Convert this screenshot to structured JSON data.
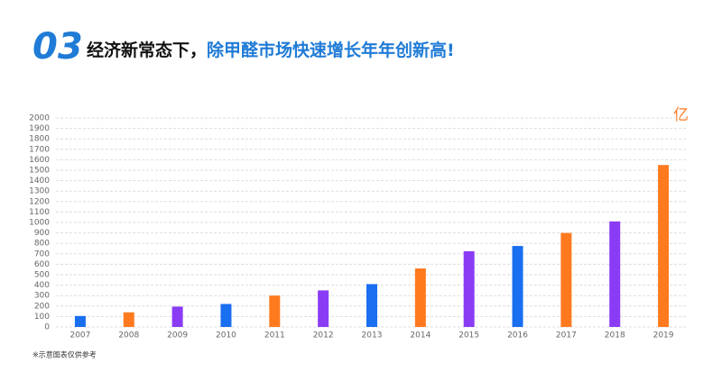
{
  "chart_data": {
    "type": "bar",
    "title_number": "03",
    "title": "经济新常态下，",
    "title_highlight": "除甲醛市场快速增长年年创新高!",
    "y_unit": "亿",
    "note": "※示意图表仅供参考",
    "categories": [
      "2007",
      "2008",
      "2009",
      "2010",
      "2011",
      "2012",
      "2013",
      "2014",
      "2015",
      "2016",
      "2017",
      "2018",
      "2019"
    ],
    "values": [
      105,
      140,
      195,
      220,
      300,
      350,
      410,
      560,
      725,
      775,
      900,
      1010,
      1550
    ],
    "colors": [
      "#1a6ef0",
      "#ff7a1f",
      "#8a3cf5",
      "#1a6ef0",
      "#ff7a1f",
      "#8a3cf5",
      "#1a6ef0",
      "#ff7a1f",
      "#8a3cf5",
      "#1a6ef0",
      "#ff7a1f",
      "#8a3cf5",
      "#ff7a1f"
    ],
    "ylim": [
      0,
      2000
    ],
    "yticks": [
      0,
      100,
      200,
      300,
      400,
      500,
      600,
      700,
      800,
      900,
      1000,
      1100,
      1200,
      1300,
      1400,
      1500,
      1600,
      1700,
      1800,
      1900,
      2000
    ],
    "grid": true
  }
}
